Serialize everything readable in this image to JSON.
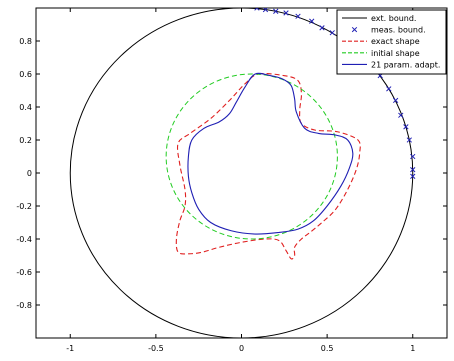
{
  "chart_data": {
    "type": "line",
    "title": "",
    "xlabel": "",
    "ylabel": "",
    "xlim": [
      -1.2,
      1.2
    ],
    "ylim": [
      -1.0,
      1.0
    ],
    "x_ticks": [
      -1,
      -0.5,
      0,
      0.5,
      1
    ],
    "x_tick_labels": [
      "-1",
      "-0.5",
      "0",
      "0.5",
      "1"
    ],
    "y_ticks": [
      -0.8,
      -0.6,
      -0.4,
      -0.2,
      0,
      0.2,
      0.4,
      0.6,
      0.8
    ],
    "y_tick_labels": [
      "-0.8",
      "-0.6",
      "-0.4",
      "-0.2",
      "0",
      "0.2",
      "0.4",
      "0.6",
      "0.8"
    ],
    "grid": false,
    "legend_position": "top-right",
    "series": [
      {
        "name": "ext. bound.",
        "color": "#000000",
        "style": "solid",
        "marker": "none",
        "curve": "circle",
        "center": [
          0,
          0
        ],
        "radius": 1.0
      },
      {
        "name": "meas. bound.",
        "color": "#1f1fb4",
        "style": "none",
        "marker": "x",
        "points": [
          [
            0.09,
            1.0
          ],
          [
            0.14,
            0.99
          ],
          [
            0.2,
            0.98
          ],
          [
            0.26,
            0.97
          ],
          [
            0.33,
            0.95
          ],
          [
            0.41,
            0.92
          ],
          [
            0.47,
            0.88
          ],
          [
            0.53,
            0.85
          ],
          [
            0.81,
            0.59
          ],
          [
            0.86,
            0.51
          ],
          [
            0.9,
            0.44
          ],
          [
            0.93,
            0.35
          ],
          [
            0.96,
            0.28
          ],
          [
            0.98,
            0.2
          ],
          [
            1.0,
            0.1
          ],
          [
            1.0,
            0.02
          ],
          [
            1.0,
            -0.02
          ]
        ]
      },
      {
        "name": "exact shape",
        "color": "#e02020",
        "style": "dashed",
        "marker": "none",
        "points": [
          [
            0.1,
            0.6
          ],
          [
            0.25,
            0.59
          ],
          [
            0.33,
            0.56
          ],
          [
            0.35,
            0.48
          ],
          [
            0.34,
            0.38
          ],
          [
            0.35,
            0.3
          ],
          [
            0.43,
            0.26
          ],
          [
            0.56,
            0.25
          ],
          [
            0.68,
            0.2
          ],
          [
            0.69,
            0.12
          ],
          [
            0.67,
            0.02
          ],
          [
            0.62,
            -0.1
          ],
          [
            0.55,
            -0.22
          ],
          [
            0.47,
            -0.3
          ],
          [
            0.4,
            -0.36
          ],
          [
            0.35,
            -0.4
          ],
          [
            0.31,
            -0.45
          ],
          [
            0.31,
            -0.5
          ],
          [
            0.29,
            -0.52
          ],
          [
            0.26,
            -0.47
          ],
          [
            0.22,
            -0.41
          ],
          [
            0.14,
            -0.4
          ],
          [
            0.0,
            -0.42
          ],
          [
            -0.13,
            -0.45
          ],
          [
            -0.23,
            -0.48
          ],
          [
            -0.31,
            -0.49
          ],
          [
            -0.37,
            -0.48
          ],
          [
            -0.38,
            -0.4
          ],
          [
            -0.36,
            -0.29
          ],
          [
            -0.33,
            -0.2
          ],
          [
            -0.33,
            -0.1
          ],
          [
            -0.36,
            0.05
          ],
          [
            -0.37,
            0.18
          ],
          [
            -0.3,
            0.24
          ],
          [
            -0.18,
            0.33
          ],
          [
            -0.07,
            0.44
          ],
          [
            0.02,
            0.54
          ],
          [
            0.1,
            0.6
          ]
        ]
      },
      {
        "name": "initial shape",
        "color": "#22cc22",
        "style": "dashed",
        "marker": "none",
        "curve": "circle",
        "center": [
          0.06,
          0.1
        ],
        "radius": 0.5
      },
      {
        "name": "21 param. adapt.",
        "color": "#1f1fb4",
        "style": "solid",
        "marker": "none",
        "points": [
          [
            0.08,
            0.6
          ],
          [
            0.17,
            0.59
          ],
          [
            0.24,
            0.57
          ],
          [
            0.29,
            0.53
          ],
          [
            0.31,
            0.45
          ],
          [
            0.32,
            0.37
          ],
          [
            0.37,
            0.27
          ],
          [
            0.45,
            0.24
          ],
          [
            0.55,
            0.23
          ],
          [
            0.62,
            0.2
          ],
          [
            0.65,
            0.12
          ],
          [
            0.63,
            0.03
          ],
          [
            0.58,
            -0.08
          ],
          [
            0.5,
            -0.2
          ],
          [
            0.42,
            -0.29
          ],
          [
            0.33,
            -0.34
          ],
          [
            0.22,
            -0.36
          ],
          [
            0.08,
            -0.37
          ],
          [
            -0.06,
            -0.35
          ],
          [
            -0.18,
            -0.3
          ],
          [
            -0.25,
            -0.22
          ],
          [
            -0.29,
            -0.12
          ],
          [
            -0.31,
            -0.02
          ],
          [
            -0.31,
            0.1
          ],
          [
            -0.29,
            0.2
          ],
          [
            -0.22,
            0.27
          ],
          [
            -0.13,
            0.31
          ],
          [
            -0.07,
            0.36
          ],
          [
            -0.03,
            0.43
          ],
          [
            0.02,
            0.52
          ],
          [
            0.08,
            0.6
          ]
        ]
      }
    ]
  }
}
